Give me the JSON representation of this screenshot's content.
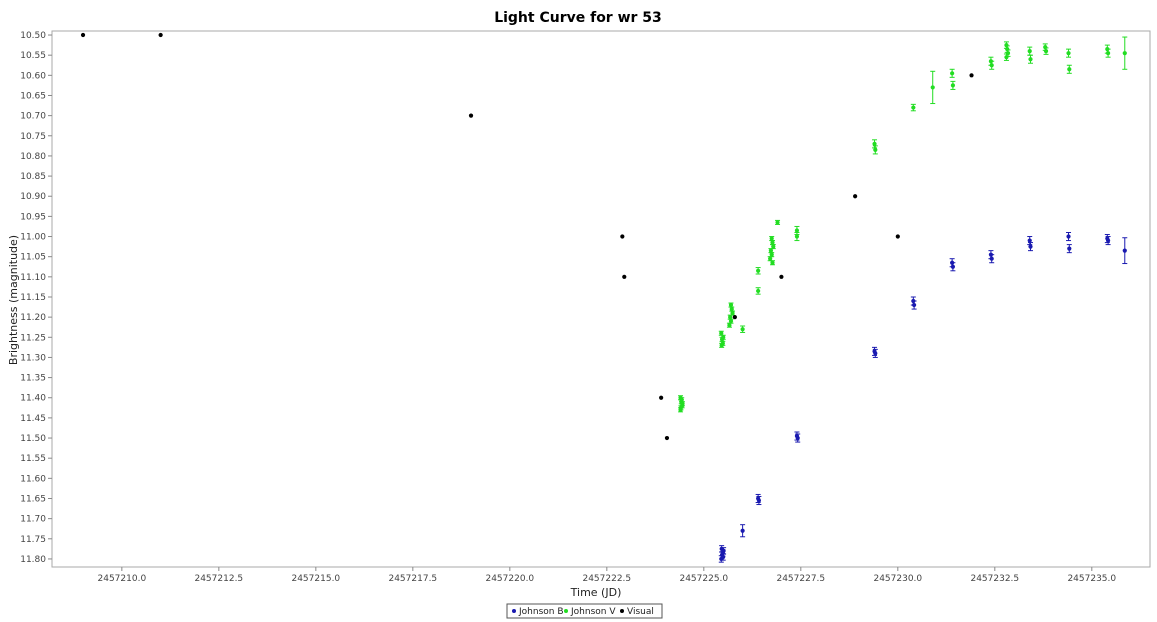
{
  "chart_data": {
    "type": "scatter",
    "title": "Light Curve for wr 53",
    "xlabel": "Time (JD)",
    "ylabel": "Brightness (magnitude)",
    "xlim": [
      2457208.2,
      2457236.5
    ],
    "ylim": [
      11.82,
      10.49
    ],
    "y_inverted": true,
    "grid": false,
    "legend_position": "bottom-center",
    "x_ticks": [
      2457210.0,
      2457212.5,
      2457215.0,
      2457217.5,
      2457220.0,
      2457222.5,
      2457225.0,
      2457227.5,
      2457230.0,
      2457232.5,
      2457235.0
    ],
    "x_tick_labels": [
      "2457210.0",
      "2457212.5",
      "2457215.0",
      "2457217.5",
      "2457220.0",
      "2457222.5",
      "2457225.0",
      "2457227.5",
      "2457230.0",
      "2457232.5",
      "2457235.0"
    ],
    "y_ticks": [
      10.5,
      10.55,
      10.6,
      10.65,
      10.7,
      10.75,
      10.8,
      10.85,
      10.9,
      10.95,
      11.0,
      11.05,
      11.1,
      11.15,
      11.2,
      11.25,
      11.3,
      11.35,
      11.4,
      11.45,
      11.5,
      11.55,
      11.6,
      11.65,
      11.7,
      11.75,
      11.8
    ],
    "y_tick_labels": [
      "10.50",
      "10.55",
      "10.60",
      "10.65",
      "10.70",
      "10.75",
      "10.80",
      "10.85",
      "10.90",
      "10.95",
      "11.00",
      "11.05",
      "11.10",
      "11.15",
      "11.20",
      "11.25",
      "11.30",
      "11.35",
      "11.40",
      "11.45",
      "11.50",
      "11.55",
      "11.60",
      "11.65",
      "11.70",
      "11.75",
      "11.80"
    ],
    "series": [
      {
        "name": "Johnson B",
        "color": "#1a1ab0",
        "points": [
          {
            "x": 2457225.45,
            "y": 11.8,
            "err": 0.008
          },
          {
            "x": 2457225.47,
            "y": 11.79,
            "err": 0.008
          },
          {
            "x": 2457225.49,
            "y": 11.785,
            "err": 0.008
          },
          {
            "x": 2457225.51,
            "y": 11.78,
            "err": 0.008
          },
          {
            "x": 2457225.46,
            "y": 11.775,
            "err": 0.008
          },
          {
            "x": 2457225.5,
            "y": 11.795,
            "err": 0.008
          },
          {
            "x": 2457226.0,
            "y": 11.73,
            "err": 0.015
          },
          {
            "x": 2457226.4,
            "y": 11.65,
            "err": 0.01
          },
          {
            "x": 2457226.42,
            "y": 11.655,
            "err": 0.01
          },
          {
            "x": 2457227.4,
            "y": 11.495,
            "err": 0.01
          },
          {
            "x": 2457227.42,
            "y": 11.5,
            "err": 0.01
          },
          {
            "x": 2457229.4,
            "y": 11.285,
            "err": 0.01
          },
          {
            "x": 2457229.42,
            "y": 11.29,
            "err": 0.01
          },
          {
            "x": 2457230.4,
            "y": 11.16,
            "err": 0.01
          },
          {
            "x": 2457230.42,
            "y": 11.17,
            "err": 0.01
          },
          {
            "x": 2457231.4,
            "y": 11.065,
            "err": 0.01
          },
          {
            "x": 2457231.42,
            "y": 11.075,
            "err": 0.01
          },
          {
            "x": 2457232.4,
            "y": 11.045,
            "err": 0.01
          },
          {
            "x": 2457232.42,
            "y": 11.055,
            "err": 0.01
          },
          {
            "x": 2457233.4,
            "y": 11.01,
            "err": 0.01
          },
          {
            "x": 2457233.42,
            "y": 11.025,
            "err": 0.01
          },
          {
            "x": 2457234.4,
            "y": 11.0,
            "err": 0.01
          },
          {
            "x": 2457234.42,
            "y": 11.03,
            "err": 0.01
          },
          {
            "x": 2457235.4,
            "y": 11.005,
            "err": 0.01
          },
          {
            "x": 2457235.42,
            "y": 11.01,
            "err": 0.01
          },
          {
            "x": 2457235.85,
            "y": 11.035,
            "err": 0.032
          }
        ]
      },
      {
        "name": "Johnson V",
        "color": "#22dd22",
        "points": [
          {
            "x": 2457224.4,
            "y": 11.4,
            "err": 0.005
          },
          {
            "x": 2457224.42,
            "y": 11.41,
            "err": 0.005
          },
          {
            "x": 2457224.44,
            "y": 11.42,
            "err": 0.005
          },
          {
            "x": 2457224.41,
            "y": 11.425,
            "err": 0.005
          },
          {
            "x": 2457224.43,
            "y": 11.405,
            "err": 0.005
          },
          {
            "x": 2457224.45,
            "y": 11.415,
            "err": 0.005
          },
          {
            "x": 2457224.4,
            "y": 11.43,
            "err": 0.005
          },
          {
            "x": 2457225.45,
            "y": 11.24,
            "err": 0.005
          },
          {
            "x": 2457225.47,
            "y": 11.255,
            "err": 0.005
          },
          {
            "x": 2457225.49,
            "y": 11.265,
            "err": 0.005
          },
          {
            "x": 2457225.46,
            "y": 11.27,
            "err": 0.005
          },
          {
            "x": 2457225.5,
            "y": 11.25,
            "err": 0.005
          },
          {
            "x": 2457225.7,
            "y": 11.17,
            "err": 0.005
          },
          {
            "x": 2457225.72,
            "y": 11.18,
            "err": 0.005
          },
          {
            "x": 2457225.74,
            "y": 11.19,
            "err": 0.005
          },
          {
            "x": 2457225.68,
            "y": 11.2,
            "err": 0.005
          },
          {
            "x": 2457225.7,
            "y": 11.21,
            "err": 0.005
          },
          {
            "x": 2457225.66,
            "y": 11.22,
            "err": 0.005
          },
          {
            "x": 2457226.0,
            "y": 11.23,
            "err": 0.008
          },
          {
            "x": 2457226.4,
            "y": 11.085,
            "err": 0.008
          },
          {
            "x": 2457226.4,
            "y": 11.135,
            "err": 0.008
          },
          {
            "x": 2457226.75,
            "y": 11.005,
            "err": 0.005
          },
          {
            "x": 2457226.77,
            "y": 11.015,
            "err": 0.005
          },
          {
            "x": 2457226.79,
            "y": 11.025,
            "err": 0.005
          },
          {
            "x": 2457226.73,
            "y": 11.035,
            "err": 0.005
          },
          {
            "x": 2457226.75,
            "y": 11.045,
            "err": 0.005
          },
          {
            "x": 2457226.71,
            "y": 11.055,
            "err": 0.005
          },
          {
            "x": 2457226.77,
            "y": 11.065,
            "err": 0.005
          },
          {
            "x": 2457226.9,
            "y": 10.965,
            "err": 0.005
          },
          {
            "x": 2457227.4,
            "y": 10.985,
            "err": 0.01
          },
          {
            "x": 2457227.4,
            "y": 11.0,
            "err": 0.01
          },
          {
            "x": 2457229.4,
            "y": 10.77,
            "err": 0.01
          },
          {
            "x": 2457229.42,
            "y": 10.785,
            "err": 0.01
          },
          {
            "x": 2457230.4,
            "y": 10.68,
            "err": 0.008
          },
          {
            "x": 2457230.9,
            "y": 10.63,
            "err": 0.04
          },
          {
            "x": 2457231.4,
            "y": 10.595,
            "err": 0.01
          },
          {
            "x": 2457231.42,
            "y": 10.625,
            "err": 0.01
          },
          {
            "x": 2457232.4,
            "y": 10.565,
            "err": 0.01
          },
          {
            "x": 2457232.42,
            "y": 10.575,
            "err": 0.01
          },
          {
            "x": 2457232.8,
            "y": 10.525,
            "err": 0.008
          },
          {
            "x": 2457232.82,
            "y": 10.535,
            "err": 0.008
          },
          {
            "x": 2457232.84,
            "y": 10.545,
            "err": 0.008
          },
          {
            "x": 2457232.8,
            "y": 10.555,
            "err": 0.008
          },
          {
            "x": 2457233.4,
            "y": 10.54,
            "err": 0.01
          },
          {
            "x": 2457233.42,
            "y": 10.56,
            "err": 0.01
          },
          {
            "x": 2457233.8,
            "y": 10.53,
            "err": 0.008
          },
          {
            "x": 2457233.82,
            "y": 10.54,
            "err": 0.008
          },
          {
            "x": 2457234.4,
            "y": 10.545,
            "err": 0.01
          },
          {
            "x": 2457234.42,
            "y": 10.585,
            "err": 0.01
          },
          {
            "x": 2457235.4,
            "y": 10.535,
            "err": 0.01
          },
          {
            "x": 2457235.42,
            "y": 10.545,
            "err": 0.01
          },
          {
            "x": 2457235.85,
            "y": 10.545,
            "err": 0.04
          }
        ]
      },
      {
        "name": "Visual",
        "color": "#000000",
        "points": [
          {
            "x": 2457209.0,
            "y": 10.5
          },
          {
            "x": 2457211.0,
            "y": 10.5
          },
          {
            "x": 2457219.0,
            "y": 10.7
          },
          {
            "x": 2457222.9,
            "y": 11.0
          },
          {
            "x": 2457222.95,
            "y": 11.1
          },
          {
            "x": 2457223.9,
            "y": 11.4
          },
          {
            "x": 2457224.05,
            "y": 11.5
          },
          {
            "x": 2457225.8,
            "y": 11.2
          },
          {
            "x": 2457227.0,
            "y": 11.1
          },
          {
            "x": 2457228.9,
            "y": 10.9
          },
          {
            "x": 2457230.0,
            "y": 11.0
          },
          {
            "x": 2457231.9,
            "y": 10.6
          }
        ]
      }
    ]
  }
}
